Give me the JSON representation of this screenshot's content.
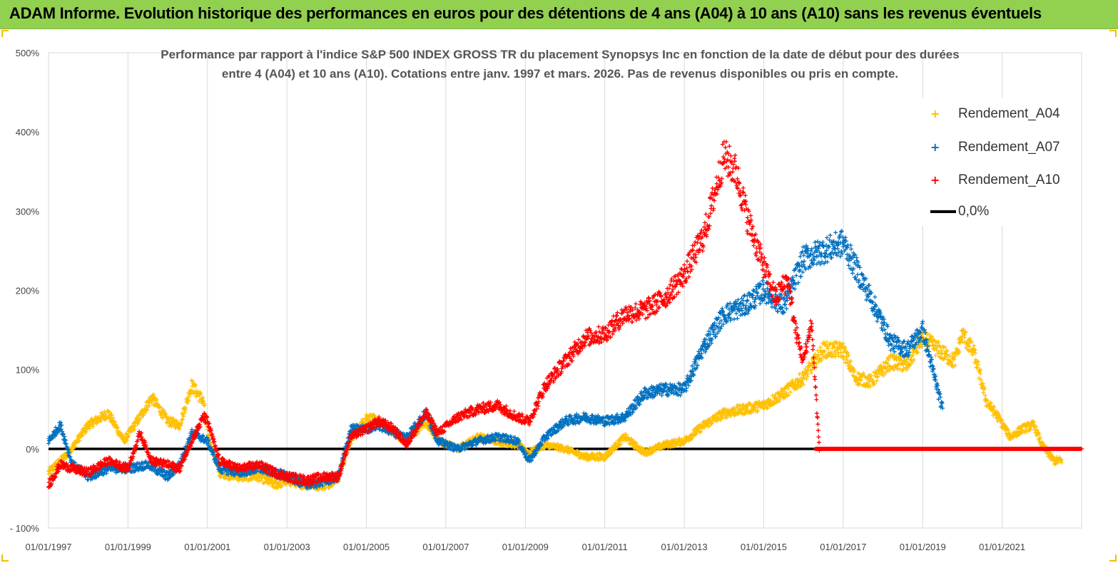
{
  "banner": {
    "title": "ADAM Informe. Evolution historique des performances en euros pour des détentions de 4 ans (A04) à 10 ans (A10) sans les revenus éventuels",
    "color": "#92d050"
  },
  "chart_data": {
    "type": "scatter",
    "title_line1": "Performance par rapport à l'indice S&P 500 INDEX GROSS TR  du placement Synopsys Inc en fonction de la date de début pour des durées",
    "title_line2": "entre 4 (A04) et 10 ans (A10). Cotations entre janv. 1997 et mars. 2026. Pas de revenus disponibles ou pris en compte.",
    "xlabel": "",
    "ylabel": "",
    "xlim": [
      "1997-01-01",
      "2023-01-01"
    ],
    "ylim": [
      -100,
      500
    ],
    "y_ticks": [
      "500%",
      "400%",
      "300%",
      "200%",
      "100%",
      "0%",
      "- 100%"
    ],
    "x_ticks": [
      "01/01/1997",
      "01/01/1999",
      "01/01/2001",
      "01/01/2003",
      "01/01/2005",
      "01/01/2007",
      "01/01/2009",
      "01/01/2011",
      "01/01/2013",
      "01/01/2015",
      "01/01/2017",
      "01/01/2019",
      "01/01/2021"
    ],
    "grid": "vertical",
    "legend_position": "right",
    "series": [
      {
        "name": "Rendement_A04",
        "color": "#ffc000",
        "marker": "+",
        "points": [
          [
            1997.0,
            -30
          ],
          [
            1997.5,
            -5
          ],
          [
            1998.0,
            30
          ],
          [
            1998.5,
            45
          ],
          [
            1998.9,
            10
          ],
          [
            1999.3,
            40
          ],
          [
            1999.6,
            65
          ],
          [
            2000.0,
            35
          ],
          [
            2000.3,
            30
          ],
          [
            2000.6,
            80
          ],
          [
            2000.9,
            60
          ],
          [
            2001.0,
            20
          ],
          [
            2001.3,
            -30
          ],
          [
            2001.8,
            -35
          ],
          [
            2002.3,
            -35
          ],
          [
            2002.7,
            -45
          ],
          [
            2003.0,
            -40
          ],
          [
            2003.5,
            -45
          ],
          [
            2004.0,
            -45
          ],
          [
            2004.3,
            -35
          ],
          [
            2004.6,
            10
          ],
          [
            2005.0,
            40
          ],
          [
            2005.3,
            35
          ],
          [
            2005.7,
            20
          ],
          [
            2006.0,
            10
          ],
          [
            2006.5,
            35
          ],
          [
            2006.8,
            10
          ],
          [
            2007.3,
            0
          ],
          [
            2007.8,
            15
          ],
          [
            2008.3,
            10
          ],
          [
            2008.8,
            5
          ],
          [
            2009.1,
            -5
          ],
          [
            2009.5,
            5
          ],
          [
            2010.0,
            0
          ],
          [
            2010.5,
            -10
          ],
          [
            2011.0,
            -10
          ],
          [
            2011.5,
            15
          ],
          [
            2012.0,
            -5
          ],
          [
            2012.5,
            5
          ],
          [
            2013.0,
            10
          ],
          [
            2013.5,
            30
          ],
          [
            2014.0,
            45
          ],
          [
            2014.5,
            50
          ],
          [
            2015.0,
            55
          ],
          [
            2015.5,
            70
          ],
          [
            2016.0,
            90
          ],
          [
            2016.5,
            125
          ],
          [
            2017.0,
            125
          ],
          [
            2017.3,
            90
          ],
          [
            2017.7,
            85
          ],
          [
            2018.2,
            110
          ],
          [
            2018.6,
            105
          ],
          [
            2019.0,
            140
          ],
          [
            2019.4,
            125
          ],
          [
            2019.8,
            110
          ],
          [
            2020.0,
            145
          ],
          [
            2020.3,
            120
          ],
          [
            2020.6,
            60
          ],
          [
            2020.9,
            40
          ],
          [
            2021.2,
            15
          ],
          [
            2021.5,
            25
          ],
          [
            2021.8,
            30
          ],
          [
            2022.0,
            5
          ],
          [
            2022.3,
            -15
          ],
          [
            2022.5,
            -15
          ]
        ]
      },
      {
        "name": "Rendement_A07",
        "color": "#0070c0",
        "marker": "+",
        "points": [
          [
            1997.0,
            10
          ],
          [
            1997.3,
            30
          ],
          [
            1997.6,
            -20
          ],
          [
            1998.0,
            -35
          ],
          [
            1998.5,
            -25
          ],
          [
            1999.0,
            -25
          ],
          [
            1999.5,
            -20
          ],
          [
            2000.0,
            -35
          ],
          [
            2000.3,
            -20
          ],
          [
            2000.6,
            20
          ],
          [
            2001.0,
            10
          ],
          [
            2001.3,
            -25
          ],
          [
            2001.8,
            -30
          ],
          [
            2002.3,
            -25
          ],
          [
            2002.7,
            -30
          ],
          [
            2003.0,
            -35
          ],
          [
            2003.5,
            -45
          ],
          [
            2004.0,
            -40
          ],
          [
            2004.3,
            -35
          ],
          [
            2004.6,
            25
          ],
          [
            2005.0,
            25
          ],
          [
            2005.3,
            30
          ],
          [
            2005.7,
            20
          ],
          [
            2006.0,
            15
          ],
          [
            2006.5,
            45
          ],
          [
            2006.8,
            10
          ],
          [
            2007.3,
            0
          ],
          [
            2007.8,
            10
          ],
          [
            2008.3,
            15
          ],
          [
            2008.8,
            10
          ],
          [
            2009.1,
            -15
          ],
          [
            2009.5,
            15
          ],
          [
            2010.0,
            35
          ],
          [
            2010.5,
            40
          ],
          [
            2011.0,
            35
          ],
          [
            2011.5,
            40
          ],
          [
            2012.0,
            70
          ],
          [
            2012.5,
            75
          ],
          [
            2013.0,
            75
          ],
          [
            2013.5,
            130
          ],
          [
            2014.0,
            170
          ],
          [
            2014.5,
            180
          ],
          [
            2015.0,
            200
          ],
          [
            2015.5,
            180
          ],
          [
            2016.0,
            240
          ],
          [
            2016.5,
            250
          ],
          [
            2017.0,
            260
          ],
          [
            2017.3,
            230
          ],
          [
            2017.7,
            190
          ],
          [
            2018.2,
            135
          ],
          [
            2018.6,
            125
          ],
          [
            2019.0,
            150
          ],
          [
            2019.3,
            90
          ],
          [
            2019.5,
            50
          ]
        ]
      },
      {
        "name": "Rendement_A10",
        "color": "#ff0000",
        "marker": "+",
        "points": [
          [
            1997.0,
            -45
          ],
          [
            1997.3,
            -20
          ],
          [
            1997.6,
            -25
          ],
          [
            1998.0,
            -30
          ],
          [
            1998.5,
            -15
          ],
          [
            1999.0,
            -25
          ],
          [
            1999.3,
            20
          ],
          [
            1999.6,
            -15
          ],
          [
            2000.0,
            -20
          ],
          [
            2000.3,
            -25
          ],
          [
            2000.6,
            10
          ],
          [
            2000.9,
            40
          ],
          [
            2001.0,
            35
          ],
          [
            2001.3,
            -15
          ],
          [
            2001.8,
            -25
          ],
          [
            2002.3,
            -20
          ],
          [
            2002.7,
            -30
          ],
          [
            2003.0,
            -35
          ],
          [
            2003.5,
            -40
          ],
          [
            2004.0,
            -35
          ],
          [
            2004.3,
            -35
          ],
          [
            2004.6,
            15
          ],
          [
            2005.0,
            25
          ],
          [
            2005.3,
            35
          ],
          [
            2005.7,
            25
          ],
          [
            2006.0,
            5
          ],
          [
            2006.5,
            45
          ],
          [
            2006.8,
            20
          ],
          [
            2007.3,
            40
          ],
          [
            2007.8,
            50
          ],
          [
            2008.3,
            55
          ],
          [
            2008.8,
            40
          ],
          [
            2009.1,
            35
          ],
          [
            2009.5,
            80
          ],
          [
            2010.0,
            110
          ],
          [
            2010.5,
            140
          ],
          [
            2011.0,
            145
          ],
          [
            2011.5,
            170
          ],
          [
            2012.0,
            175
          ],
          [
            2012.5,
            190
          ],
          [
            2013.0,
            220
          ],
          [
            2013.5,
            270
          ],
          [
            2014.0,
            370
          ],
          [
            2014.3,
            350
          ],
          [
            2014.6,
            290
          ],
          [
            2015.0,
            230
          ],
          [
            2015.3,
            190
          ],
          [
            2015.6,
            215
          ],
          [
            2015.8,
            150
          ],
          [
            2016.0,
            110
          ],
          [
            2016.2,
            160
          ],
          [
            2016.4,
            0
          ]
        ]
      },
      {
        "name": "0,0%",
        "color": "#000000",
        "marker": "line",
        "points": [
          [
            1997.0,
            0
          ],
          [
            2023.0,
            0
          ]
        ]
      }
    ]
  }
}
